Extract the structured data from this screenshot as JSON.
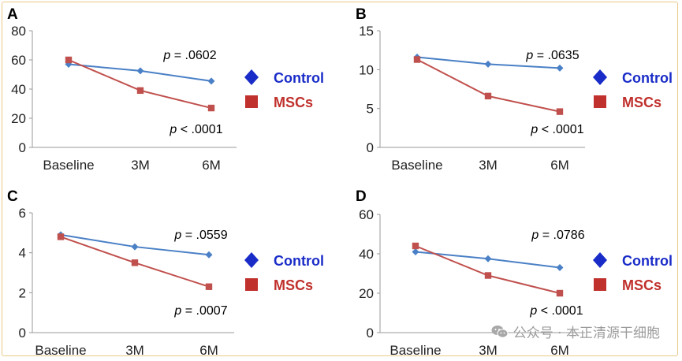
{
  "colors": {
    "control": "#4a80c6",
    "mscs": "#c0504d",
    "control_legend": "#1a2cc8",
    "mscs_legend": "#c0302c"
  },
  "watermark": {
    "text": "公众号 · 本正清源干细胞"
  },
  "chart_data": [
    {
      "panel": "A",
      "type": "line",
      "categories": [
        "Baseline",
        "3M",
        "6M"
      ],
      "ylim": [
        0,
        80
      ],
      "yticks": [
        "0",
        "20",
        "40",
        "60",
        "80"
      ],
      "series": [
        {
          "name": "Control",
          "values": [
            57,
            52.5,
            45.5
          ],
          "marker": "diamond"
        },
        {
          "name": "MSCs",
          "values": [
            60,
            39,
            27
          ],
          "marker": "square"
        }
      ],
      "annotations": [
        {
          "series": "Control",
          "p_label": "p",
          "p_rest": " = .0602"
        },
        {
          "series": "MSCs",
          "p_label": "p",
          "p_rest": " < .0001"
        }
      ],
      "legend": [
        "Control",
        "MSCs"
      ]
    },
    {
      "panel": "B",
      "type": "line",
      "categories": [
        "Baseline",
        "3M",
        "6M"
      ],
      "ylim": [
        0,
        15
      ],
      "yticks": [
        "0",
        "5",
        "10",
        "15"
      ],
      "series": [
        {
          "name": "Control",
          "values": [
            11.6,
            10.7,
            10.2
          ],
          "marker": "diamond"
        },
        {
          "name": "MSCs",
          "values": [
            11.3,
            6.6,
            4.6
          ],
          "marker": "square"
        }
      ],
      "annotations": [
        {
          "series": "Control",
          "p_label": "p",
          "p_rest": " = .0635"
        },
        {
          "series": "MSCs",
          "p_label": "p",
          "p_rest": " < .0001"
        }
      ],
      "legend": [
        "Control",
        "MSCs"
      ]
    },
    {
      "panel": "C",
      "type": "line",
      "categories": [
        "Baseline",
        "3M",
        "6M"
      ],
      "ylim": [
        0,
        6
      ],
      "yticks": [
        "0",
        "2",
        "4",
        "6"
      ],
      "series": [
        {
          "name": "Control",
          "values": [
            4.9,
            4.3,
            3.9
          ],
          "marker": "diamond"
        },
        {
          "name": "MSCs",
          "values": [
            4.8,
            3.5,
            2.3
          ],
          "marker": "square"
        }
      ],
      "annotations": [
        {
          "series": "Control",
          "p_label": "p",
          "p_rest": " = .0559"
        },
        {
          "series": "MSCs",
          "p_label": "p",
          "p_rest": " = .0007"
        }
      ],
      "legend": [
        "Control",
        "MSCs"
      ]
    },
    {
      "panel": "D",
      "type": "line",
      "categories": [
        "Baseline",
        "3M",
        "6M"
      ],
      "ylim": [
        0,
        60
      ],
      "yticks": [
        "0",
        "20",
        "40",
        "60"
      ],
      "series": [
        {
          "name": "Control",
          "values": [
            41,
            37.5,
            33
          ],
          "marker": "diamond"
        },
        {
          "name": "MSCs",
          "values": [
            44,
            29,
            20
          ],
          "marker": "square"
        }
      ],
      "annotations": [
        {
          "series": "Control",
          "p_label": "p",
          "p_rest": " = .0786"
        },
        {
          "series": "MSCs",
          "p_label": "p",
          "p_rest": " < .0001"
        }
      ],
      "legend": [
        "Control",
        "MSCs"
      ]
    }
  ]
}
